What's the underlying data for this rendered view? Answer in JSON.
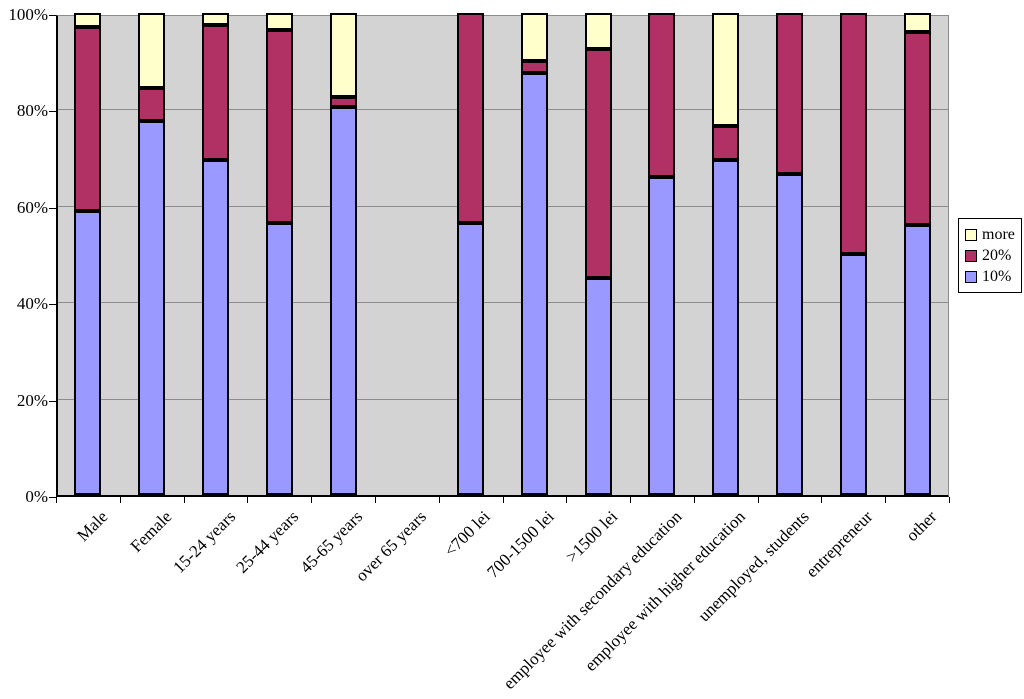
{
  "chart_data": {
    "type": "bar",
    "subtype": "100%-stacked-column",
    "title": "",
    "xlabel": "",
    "ylabel": "",
    "ylim": [
      0,
      100
    ],
    "grid": true,
    "y_tick_labels": [
      "0%",
      "20%",
      "40%",
      "60%",
      "80%",
      "100%"
    ],
    "y_tick_values": [
      0,
      20,
      40,
      60,
      80,
      100
    ],
    "categories": [
      "Male",
      "Female",
      "15-24 years",
      "25-44 years",
      "45-65  years",
      "over 65 years",
      "<700 lei",
      "700-1500 lei",
      ">1500 lei",
      "employee with secondary education",
      "employee with higher education",
      "unemployed, students",
      "entrepreneur",
      "other"
    ],
    "series": [
      {
        "name": "10%",
        "color": "#9999ff",
        "values": [
          59,
          77.5,
          69.5,
          56.5,
          80.5,
          0,
          56.5,
          87.5,
          45,
          66,
          69.5,
          66.5,
          50,
          56
        ]
      },
      {
        "name": "20%",
        "color": "#b23165",
        "values": [
          38,
          7,
          28,
          40,
          2,
          0,
          43.5,
          2.5,
          47.5,
          34,
          7,
          33.5,
          50,
          40
        ]
      },
      {
        "name": "more",
        "color": "#ffffcc",
        "values": [
          3,
          15.5,
          2.5,
          3.5,
          17.5,
          0,
          0,
          10,
          7.5,
          0,
          23.5,
          0,
          0,
          4
        ]
      }
    ],
    "legend": {
      "position": "right",
      "items": [
        {
          "label": "more",
          "color": "#ffffcc"
        },
        {
          "label": "20%",
          "color": "#b23165"
        },
        {
          "label": "10%",
          "color": "#9999ff"
        }
      ]
    },
    "colors": {
      "plot_background": "#d3d3d3",
      "gridline": "#8c8c8c",
      "bar_border": "#000000",
      "axis": "#000000",
      "page_background": "#ffffff"
    }
  }
}
